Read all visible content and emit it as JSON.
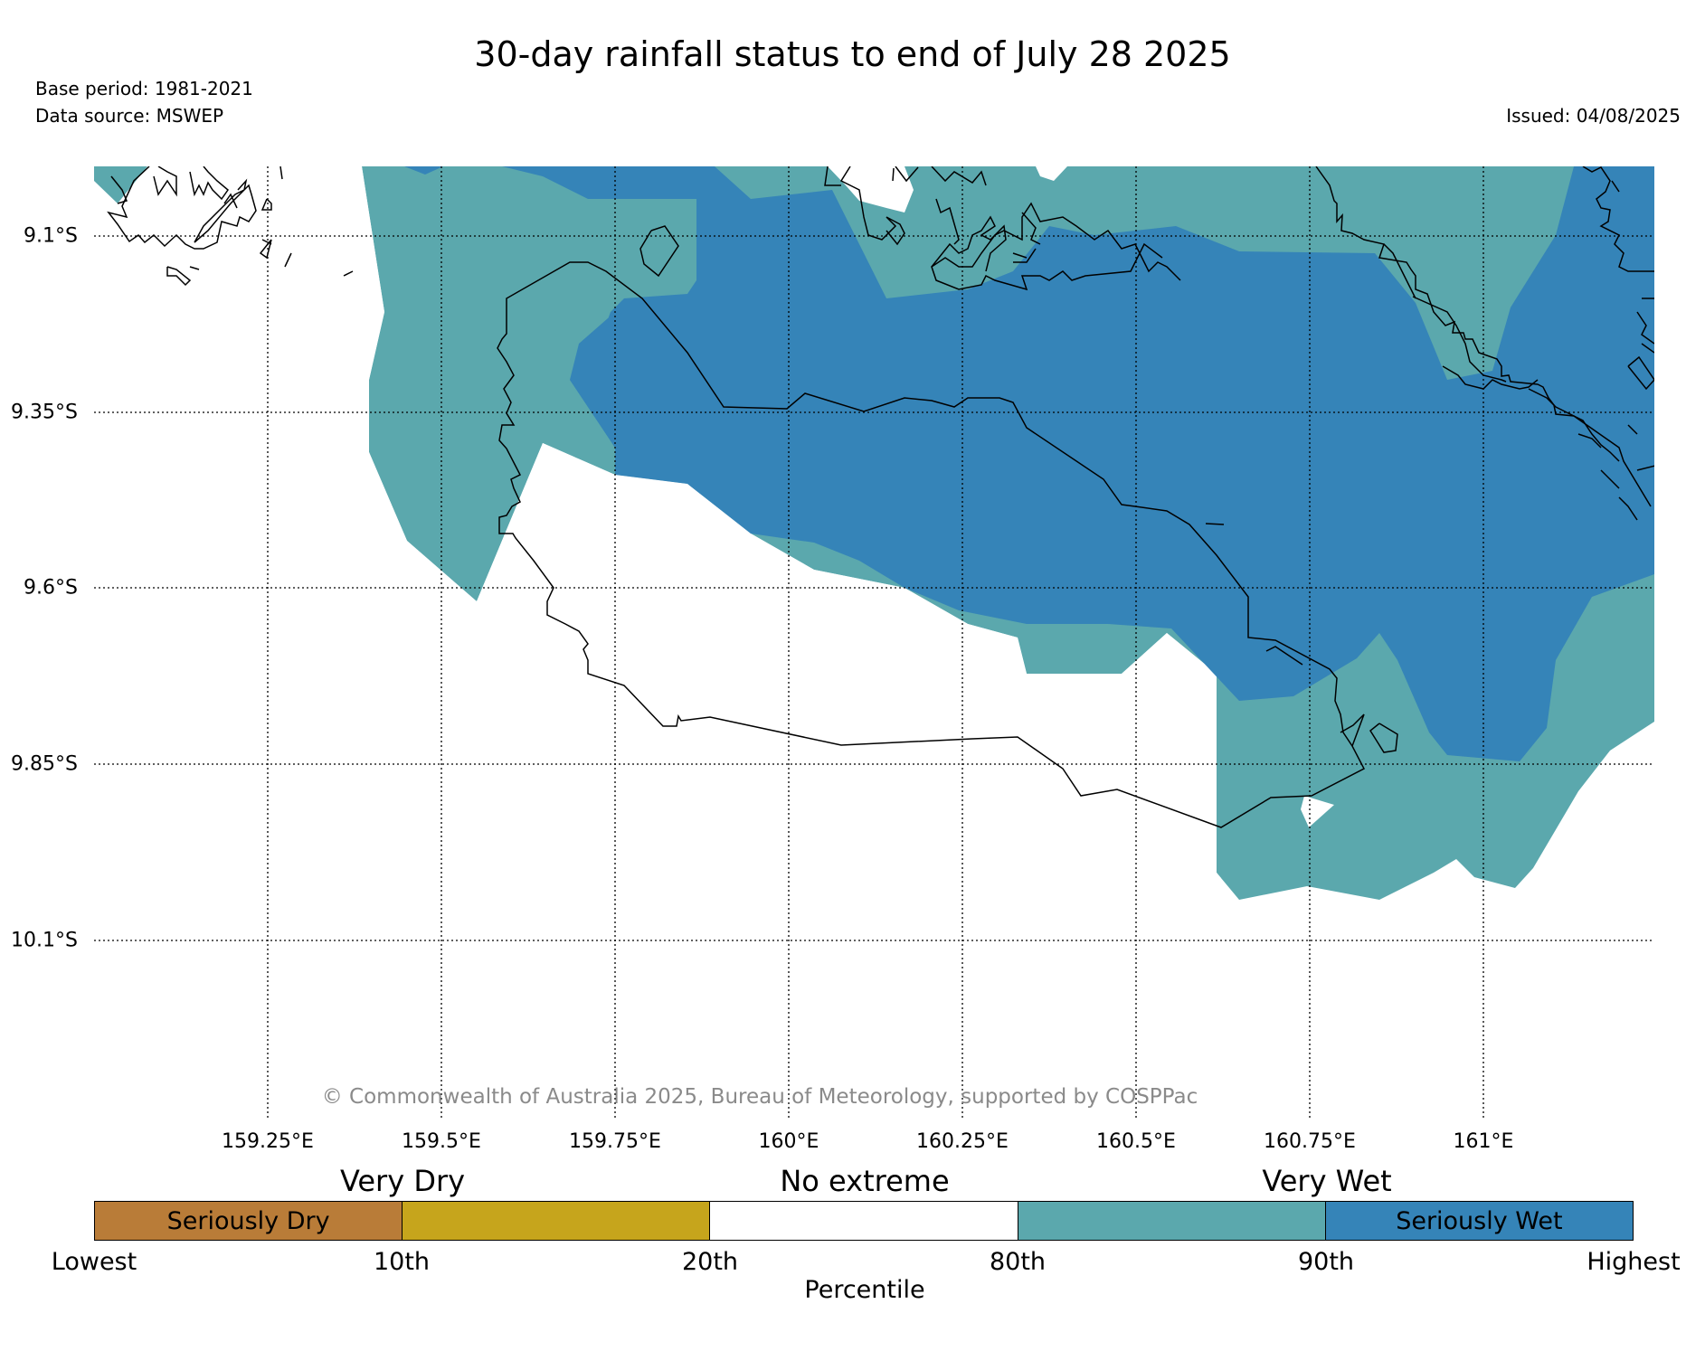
{
  "header": {
    "title": "30-day rainfall status to end of July 28 2025",
    "base_period": "Base period: 1981-2021",
    "data_source": "Data source: MSWEP",
    "issued": "Issued: 04/08/2025"
  },
  "map": {
    "lon_labels": [
      "159.25°E",
      "159.5°E",
      "159.75°E",
      "160°E",
      "160.25°E",
      "160.5°E",
      "160.75°E",
      "161°E"
    ],
    "lat_labels": [
      "9.1°S",
      "9.35°S",
      "9.6°S",
      "9.85°S",
      "10.1°S"
    ],
    "copyright": "© Commonwealth of Australia 2025, Bureau of Meteorology, supported by COSPPac",
    "colors": {
      "very_wet": "#5ba8ad",
      "seriously_wet": "#3584b8",
      "coastline": "#000000"
    }
  },
  "legend": {
    "groups": {
      "very_dry": "Very Dry",
      "no_extreme": "No extreme",
      "very_wet": "Very Wet"
    },
    "segments": [
      {
        "label": "Seriously Dry",
        "color": "#b97c38"
      },
      {
        "label": "",
        "color": "#c6a51c"
      },
      {
        "label": "",
        "color": "#ffffff"
      },
      {
        "label": "",
        "color": "#5ba8ad"
      },
      {
        "label": "Seriously Wet",
        "color": "#3584b8"
      }
    ],
    "ticks": [
      "Lowest",
      "10th",
      "20th",
      "80th",
      "90th",
      "Highest"
    ],
    "axis_label": "Percentile"
  }
}
